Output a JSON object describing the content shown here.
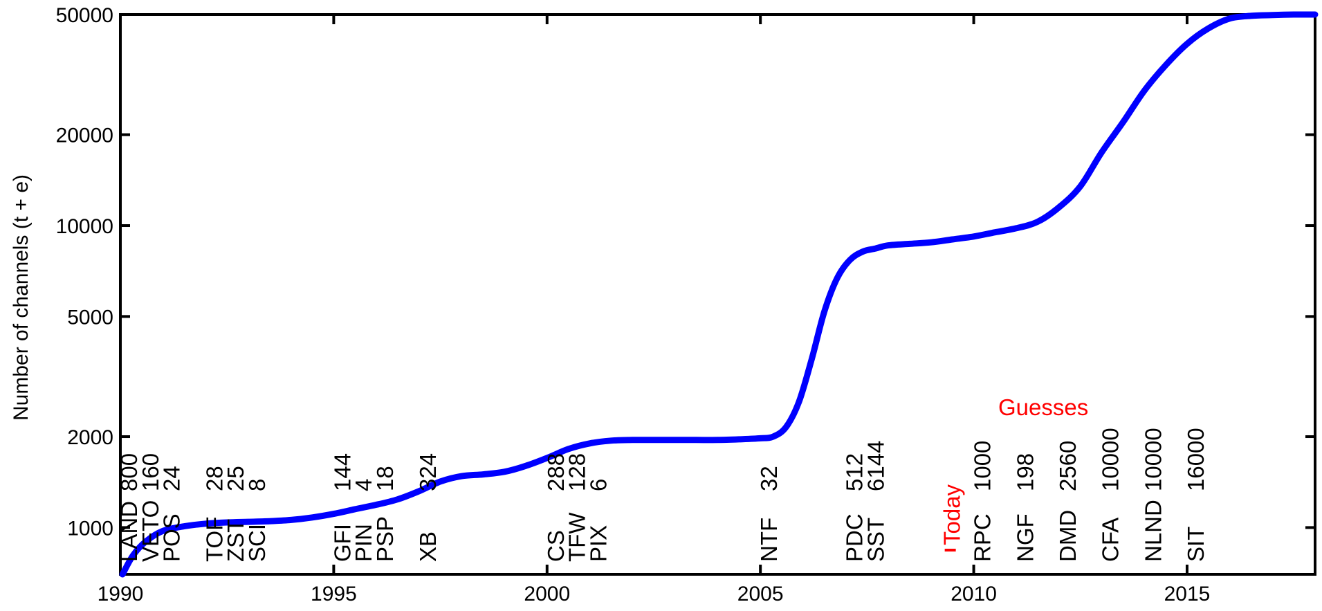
{
  "chart_data": {
    "type": "line",
    "ylabel": "Number of channels (t + e)",
    "xlabel": "",
    "title": "",
    "xlim": [
      1990,
      2018
    ],
    "ylim": [
      700,
      50000
    ],
    "y_scale": "log",
    "grid": false,
    "x_ticks": [
      {
        "value": 1990,
        "label": "1990"
      },
      {
        "value": 1995,
        "label": "1995"
      },
      {
        "value": 2000,
        "label": "2000"
      },
      {
        "value": 2005,
        "label": "2005"
      },
      {
        "value": 2010,
        "label": "2010"
      },
      {
        "value": 2015,
        "label": "2015"
      }
    ],
    "y_ticks": [
      {
        "value": 1000,
        "label": "1000"
      },
      {
        "value": 2000,
        "label": "2000"
      },
      {
        "value": 5000,
        "label": "5000"
      },
      {
        "value": 10000,
        "label": "10000"
      },
      {
        "value": 20000,
        "label": "20000"
      },
      {
        "value": 50000,
        "label": "50000"
      }
    ],
    "series": [
      {
        "color": "#0000ff",
        "x": [
          1990.05,
          1990.3,
          1990.6,
          1991.0,
          1991.5,
          1992.0,
          1992.5,
          1993.0,
          1993.5,
          1994.0,
          1994.5,
          1995.0,
          1995.5,
          1996.0,
          1996.5,
          1997.0,
          1997.5,
          1998.0,
          1998.5,
          1999.0,
          1999.5,
          2000.0,
          2000.5,
          2001.0,
          2001.5,
          2002.0,
          2002.5,
          2003.0,
          2003.5,
          2004.0,
          2004.5,
          2005.0,
          2005.3,
          2005.6,
          2005.9,
          2006.2,
          2006.5,
          2006.8,
          2007.1,
          2007.4,
          2007.7,
          2008.0,
          2008.5,
          2009.0,
          2009.5,
          2010.0,
          2010.5,
          2011.0,
          2011.5,
          2012.0,
          2012.5,
          2013.0,
          2013.5,
          2014.0,
          2014.5,
          2015.0,
          2015.5,
          2016.0,
          2016.5,
          2017.0,
          2017.5,
          2018.0
        ],
        "y": [
          700,
          810,
          900,
          975,
          1010,
          1030,
          1040,
          1045,
          1050,
          1060,
          1080,
          1110,
          1150,
          1190,
          1240,
          1320,
          1420,
          1480,
          1500,
          1530,
          1600,
          1700,
          1820,
          1900,
          1940,
          1950,
          1950,
          1950,
          1950,
          1950,
          1960,
          1975,
          2000,
          2150,
          2600,
          3600,
          5200,
          6700,
          7700,
          8200,
          8400,
          8600,
          8700,
          8800,
          9000,
          9200,
          9500,
          9800,
          10300,
          11500,
          13500,
          17500,
          22000,
          28000,
          34000,
          40000,
          45000,
          48500,
          49500,
          49800,
          50000,
          50000
        ]
      }
    ],
    "annotations": [
      {
        "x": 1990.0,
        "name": "LAND",
        "count": "800"
      },
      {
        "x": 1990.5,
        "name": "VETO",
        "count": "160"
      },
      {
        "x": 1991.0,
        "name": "POS",
        "count": "24"
      },
      {
        "x": 1992.0,
        "name": "TOF",
        "count": "28"
      },
      {
        "x": 1992.5,
        "name": "ZST",
        "count": "25"
      },
      {
        "x": 1993.0,
        "name": "SCI",
        "count": "8"
      },
      {
        "x": 1995.0,
        "name": "GFI",
        "count": "144"
      },
      {
        "x": 1995.5,
        "name": "PIN",
        "count": "4"
      },
      {
        "x": 1996.0,
        "name": "PSP",
        "count": "18"
      },
      {
        "x": 1997.0,
        "name": "XB",
        "count": "324"
      },
      {
        "x": 2000.0,
        "name": "CS",
        "count": "288"
      },
      {
        "x": 2000.5,
        "name": "TFW",
        "count": "128"
      },
      {
        "x": 2001.0,
        "name": "PIX",
        "count": "6"
      },
      {
        "x": 2005.0,
        "name": "NTF",
        "count": "32"
      },
      {
        "x": 2007.0,
        "name": "PDC",
        "count": "512"
      },
      {
        "x": 2007.5,
        "name": "SST",
        "count": "6144"
      },
      {
        "x": 2010.0,
        "name": "RPC",
        "count": "1000"
      },
      {
        "x": 2011.0,
        "name": "NGF",
        "count": "198"
      },
      {
        "x": 2012.0,
        "name": "DMD",
        "count": "2560"
      },
      {
        "x": 2013.0,
        "name": "CFA",
        "count": "10000"
      },
      {
        "x": 2014.0,
        "name": "NLND",
        "count": "10000"
      },
      {
        "x": 2015.0,
        "name": "SIT",
        "count": "16000"
      }
    ],
    "today_marker": {
      "x": 2009.45,
      "label": "Today",
      "color": "#ff0000"
    },
    "guesses_label": {
      "text": "Guesses",
      "color": "#ff0000"
    }
  }
}
